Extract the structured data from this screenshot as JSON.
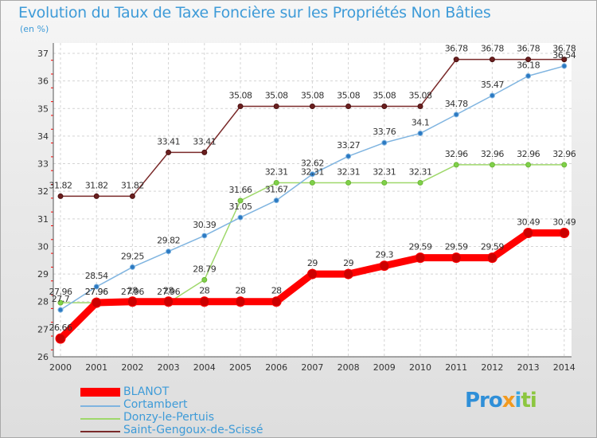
{
  "header": {
    "title": "Evolution du Taux de Taxe Foncière sur les Propriétés Non Bâties",
    "unit": "(en %)"
  },
  "logo": {
    "parts": [
      "Pro",
      "x",
      "i",
      "ti"
    ]
  },
  "colors": {
    "title": "#3e9bd8",
    "blanot": "#ff0000",
    "cortambert": "#7fb4e0",
    "donzy": "#9fd86b",
    "saint_gengoux": "#7a2a2a"
  },
  "chart_data": {
    "type": "line",
    "title": "Evolution du Taux de Taxe Foncière sur les Propriétés Non Bâties",
    "ylabel": "(en %)",
    "xlabel": "",
    "x": [
      "2000",
      "2001",
      "2002",
      "2003",
      "2004",
      "2005",
      "2006",
      "2007",
      "2008",
      "2009",
      "2010",
      "2011",
      "2012",
      "2013",
      "2014"
    ],
    "ylim": [
      26,
      37
    ],
    "yticks": [
      "26",
      "27",
      "28",
      "29",
      "30",
      "31",
      "32",
      "33",
      "34",
      "35",
      "36",
      "37"
    ],
    "grid": true,
    "legend_position": "bottom-left",
    "series": [
      {
        "name": "BLANOT",
        "color": "#ff0000",
        "values": [
          26.66,
          27.96,
          28,
          28,
          28,
          28,
          28,
          29,
          29,
          29.3,
          29.59,
          29.59,
          29.59,
          30.49,
          30.49
        ],
        "labels": [
          "26.66",
          "27.96",
          "28",
          "28",
          "28",
          "28",
          "28",
          "29",
          "29",
          "29.3",
          "29.59",
          "29.59",
          "29.59",
          "30.49",
          "30.49"
        ]
      },
      {
        "name": "Cortambert",
        "color": "#7fb4e0",
        "values": [
          27.7,
          28.54,
          29.25,
          29.82,
          30.39,
          31.05,
          31.67,
          32.62,
          33.27,
          33.76,
          34.1,
          34.78,
          35.47,
          36.18,
          36.54
        ],
        "labels": [
          "27.7",
          "28.54",
          "29.25",
          "29.82",
          "30.39",
          "31.05",
          "31.67",
          "32.62",
          "33.27",
          "33.76",
          "34.1",
          "34.78",
          "35.47",
          "36.18",
          "36.54"
        ]
      },
      {
        "name": "Donzy-le-Pertuis",
        "color": "#9fd86b",
        "values": [
          27.96,
          27.96,
          27.96,
          27.96,
          28.79,
          31.66,
          32.31,
          32.31,
          32.31,
          32.31,
          32.31,
          32.96,
          32.96,
          32.96,
          32.96
        ],
        "labels": [
          "27.96",
          "27.96",
          "27.96",
          "27.96",
          "28.79",
          "31.66",
          "32.31",
          "32.31",
          "32.31",
          "32.31",
          "32.31",
          "32.96",
          "32.96",
          "32.96",
          "32.96"
        ]
      },
      {
        "name": "Saint-Gengoux-de-Scissé",
        "color": "#7a2a2a",
        "values": [
          31.82,
          31.82,
          31.82,
          33.41,
          33.41,
          35.08,
          35.08,
          35.08,
          35.08,
          35.08,
          35.08,
          36.78,
          36.78,
          36.78,
          36.78
        ],
        "labels": [
          "31.82",
          "31.82",
          "31.82",
          "33.41",
          "33.41",
          "35.08",
          "35.08",
          "35.08",
          "35.08",
          "35.08",
          "35.08",
          "36.78",
          "36.78",
          "36.78",
          "36.78"
        ]
      }
    ]
  },
  "legend": {
    "items": [
      "BLANOT",
      "Cortambert",
      "Donzy-le-Pertuis",
      "Saint-Gengoux-de-Scissé"
    ]
  }
}
